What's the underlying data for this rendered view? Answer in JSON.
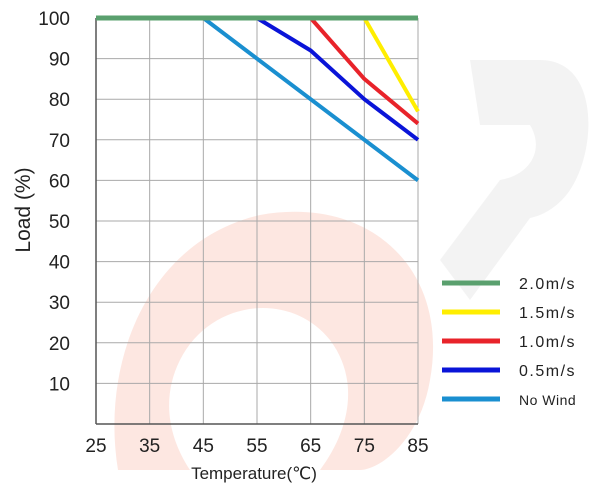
{
  "chart_data": {
    "type": "line",
    "xlabel": "Temperature(℃)",
    "ylabel": "Load (%)",
    "xlim": [
      25,
      85
    ],
    "ylim": [
      0,
      100
    ],
    "x_ticks": [
      25,
      35,
      45,
      55,
      65,
      75,
      85
    ],
    "y_ticks": [
      10,
      20,
      30,
      40,
      50,
      60,
      70,
      80,
      90,
      100
    ],
    "grid": true,
    "legend_position": "bottom-right",
    "series": [
      {
        "name": "2.0m/s",
        "color": "#5aa06e",
        "x": [
          25,
          85
        ],
        "y": [
          100,
          100
        ]
      },
      {
        "name": "1.5m/s",
        "color": "#ffee00",
        "x": [
          25,
          75,
          85
        ],
        "y": [
          100,
          100,
          77
        ]
      },
      {
        "name": "1.0m/s",
        "color": "#e8232a",
        "x": [
          25,
          65,
          75,
          85
        ],
        "y": [
          100,
          100,
          85,
          74
        ]
      },
      {
        "name": "0.5m/s",
        "color": "#0a14d8",
        "x": [
          25,
          55,
          65,
          75,
          85
        ],
        "y": [
          100,
          100,
          92,
          80,
          70
        ]
      },
      {
        "name": "No Wind",
        "color": "#1a8fd0",
        "x": [
          25,
          45,
          85
        ],
        "y": [
          100,
          100,
          60
        ]
      }
    ],
    "legend_order": [
      0,
      1,
      2,
      3,
      4
    ]
  }
}
